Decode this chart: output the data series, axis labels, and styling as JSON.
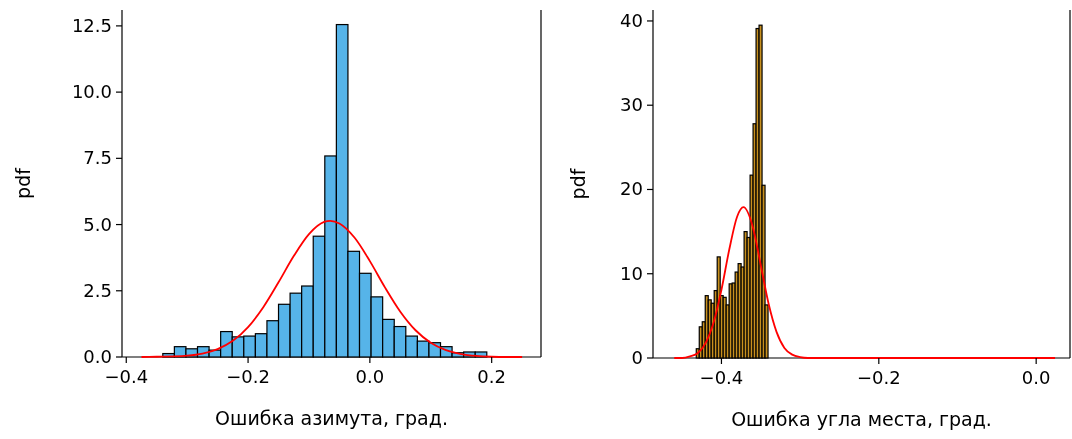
{
  "chart_data": [
    {
      "type": "histogram",
      "xlabel": "Ошибка азимута, град.",
      "ylabel": "pdf",
      "xlim": [
        -0.407,
        0.281
      ],
      "ylim": [
        0,
        13.1
      ],
      "xticks": [
        {
          "value": -0.4,
          "label": "−0.4"
        },
        {
          "value": -0.2,
          "label": "−0.2"
        },
        {
          "value": 0,
          "label": "0.0"
        },
        {
          "value": 0.2,
          "label": "0.2"
        }
      ],
      "yticks": [
        {
          "value": 0,
          "label": "0.0"
        },
        {
          "value": 2.5,
          "label": "2.5"
        },
        {
          "value": 5,
          "label": "5.0"
        },
        {
          "value": 7.5,
          "label": "7.5"
        },
        {
          "value": 10,
          "label": "10.0"
        },
        {
          "value": 12.5,
          "label": "12.5"
        }
      ],
      "bins": [
        -0.34,
        -0.321,
        -0.302,
        -0.283,
        -0.264,
        -0.245,
        -0.226,
        -0.207,
        -0.188,
        -0.169,
        -0.15,
        -0.131,
        -0.112,
        -0.093,
        -0.074,
        -0.055,
        -0.036,
        -0.017,
        0.002,
        0.021,
        0.04,
        0.059,
        0.078,
        0.097,
        0.116,
        0.135,
        0.154,
        0.173,
        0.192
      ],
      "grid": false,
      "series": [
        {
          "color": "#56b4e9",
          "values": [
            0.13,
            0.39,
            0.31,
            0.39,
            0.26,
            0.96,
            0.76,
            0.79,
            0.88,
            1.37,
            1.99,
            2.41,
            2.68,
            4.56,
            7.59,
            12.55,
            3.99,
            3.16,
            2.27,
            1.42,
            1.15,
            0.79,
            0.6,
            0.54,
            0.39,
            0.16,
            0.19,
            0.19
          ]
        },
        {
          "type": "line",
          "color": "#ff0000",
          "x": [
            -0.375,
            -0.35,
            -0.325,
            -0.3,
            -0.275,
            -0.25,
            -0.225,
            -0.2,
            -0.175,
            -0.15,
            -0.125,
            -0.1,
            -0.075,
            -0.065,
            -0.05,
            -0.025,
            0,
            0.025,
            0.05,
            0.075,
            0.1,
            0.125,
            0.15,
            0.175,
            0.2,
            0.225,
            0.25
          ],
          "values": [
            0,
            0.01,
            0.02,
            0.05,
            0.13,
            0.3,
            0.61,
            1.13,
            1.88,
            2.82,
            3.81,
            4.64,
            5.1,
            5.14,
            5.04,
            4.5,
            3.62,
            2.62,
            1.71,
            1.01,
            0.54,
            0.26,
            0.11,
            0.04,
            0.01,
            0,
            0
          ]
        }
      ]
    },
    {
      "type": "histogram",
      "xlabel": "Ошибка угла места, град.",
      "ylabel": "pdf",
      "xlim": [
        -0.487,
        0.043
      ],
      "ylim": [
        0,
        41.3
      ],
      "xticks": [
        {
          "value": -0.4,
          "label": "−0.4"
        },
        {
          "value": -0.2,
          "label": "−0.2"
        },
        {
          "value": 0,
          "label": "0.0"
        }
      ],
      "yticks": [
        0,
        10,
        20,
        30,
        40
      ],
      "bins": [
        -0.432,
        -0.4282,
        -0.4244,
        -0.4206,
        -0.4168,
        -0.413,
        -0.4092,
        -0.4054,
        -0.4016,
        -0.3978,
        -0.394,
        -0.3902,
        -0.3864,
        -0.3826,
        -0.3788,
        -0.375,
        -0.3712,
        -0.3674,
        -0.3636,
        -0.3598,
        -0.356,
        -0.3522,
        -0.3484,
        -0.3446,
        -0.3408
      ],
      "grid": false,
      "series": [
        {
          "color": "#c8901e",
          "values": [
            1.1,
            3.7,
            4.3,
            7.4,
            6.9,
            6.5,
            8,
            12,
            7.4,
            7.2,
            6.3,
            8.8,
            8.9,
            10.2,
            11.2,
            10.8,
            15,
            14.3,
            21.7,
            27.8,
            39.1,
            39.5,
            20.5,
            6.3
          ]
        },
        {
          "type": "line",
          "color": "#ff0000",
          "x": [
            -0.46,
            -0.45,
            -0.44,
            -0.43,
            -0.42,
            -0.41,
            -0.4,
            -0.39,
            -0.38,
            -0.372,
            -0.36,
            -0.35,
            -0.34,
            -0.33,
            -0.32,
            -0.31,
            -0.3,
            -0.29,
            -0.28,
            -0.2,
            0.024
          ],
          "values": [
            0,
            0,
            0.2,
            0.6,
            1.8,
            4.2,
            8.1,
            12.9,
            16.8,
            17.9,
            15.5,
            11,
            6.4,
            3.1,
            1.2,
            0.4,
            0.1,
            0,
            0,
            0,
            0
          ]
        }
      ]
    }
  ]
}
